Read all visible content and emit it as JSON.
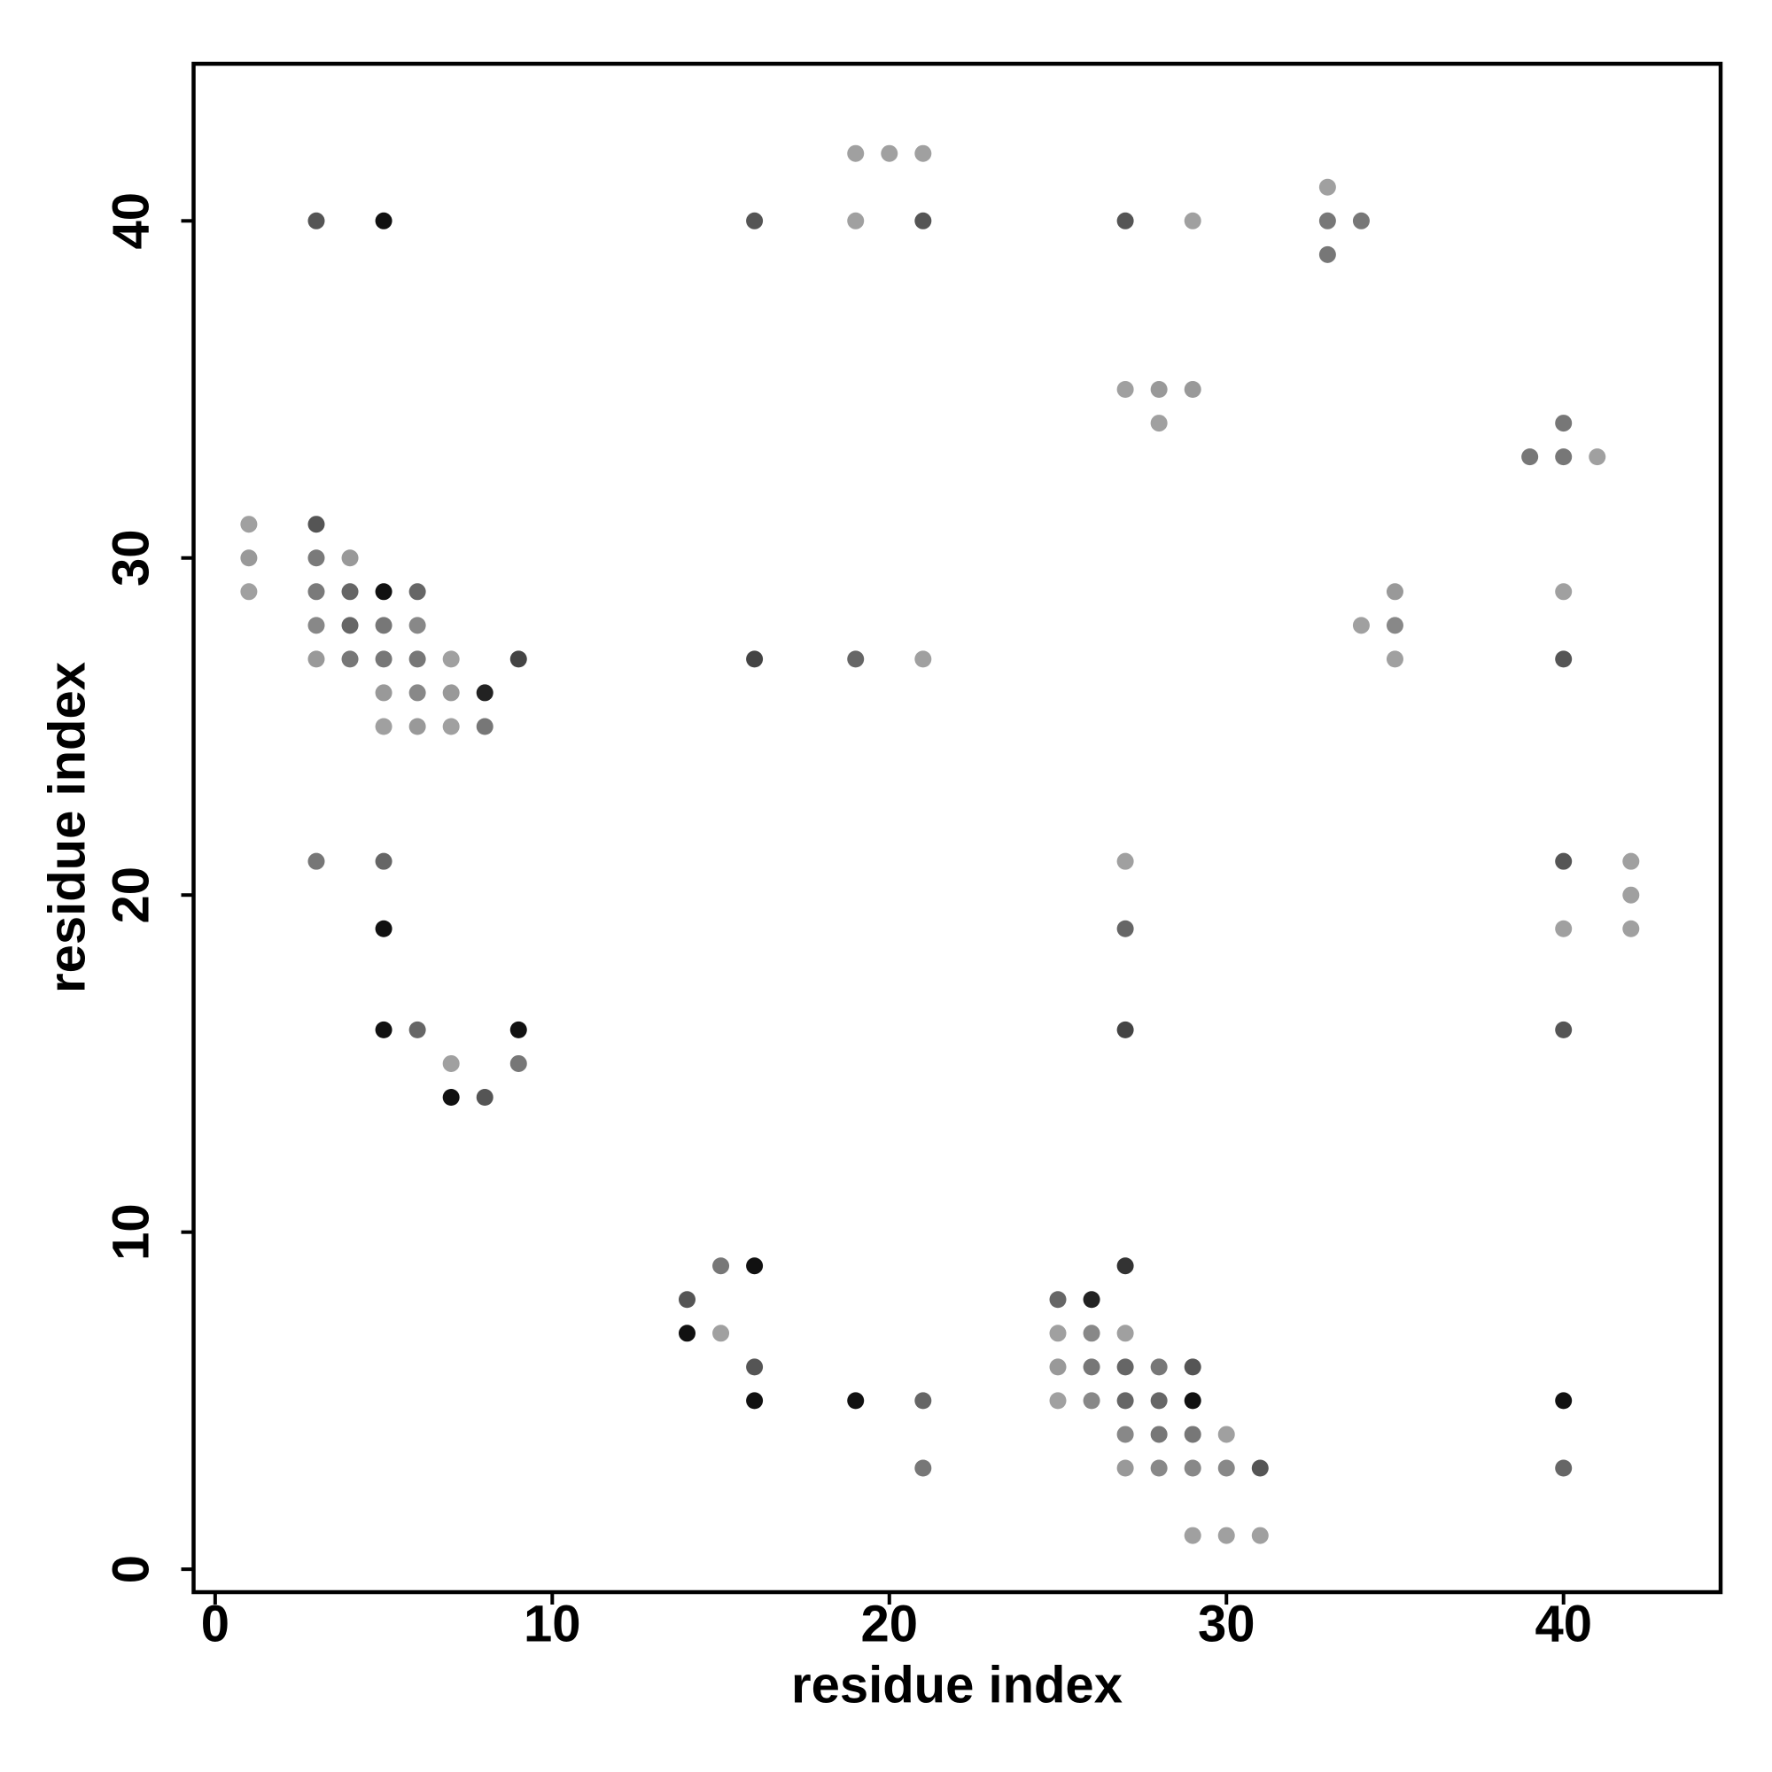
{
  "chart_data": {
    "type": "scatter",
    "xlabel": "residue index",
    "ylabel": "residue index",
    "x": [
      19,
      20,
      21,
      3,
      5,
      16,
      19,
      21,
      27,
      29,
      33,
      34,
      33,
      33,
      27,
      28,
      29,
      28,
      40,
      39,
      40,
      41,
      1,
      3,
      1,
      3,
      4,
      1,
      3,
      4,
      5,
      6,
      35,
      40,
      3,
      4,
      5,
      6,
      34,
      35,
      3,
      4,
      5,
      6,
      7,
      9,
      16,
      19,
      21,
      35,
      40,
      5,
      6,
      7,
      8,
      5,
      6,
      7,
      8,
      3,
      5,
      27,
      40,
      42,
      42,
      5,
      27,
      40,
      42,
      5,
      6,
      9,
      27,
      40,
      7,
      9,
      7,
      8,
      15,
      16,
      27,
      14,
      25,
      26,
      14,
      15,
      25,
      26,
      27,
      16,
      25,
      26,
      27,
      28,
      29,
      16,
      19,
      21,
      25,
      26,
      27,
      28,
      29,
      40,
      27,
      28,
      29,
      30,
      21,
      27,
      28,
      29,
      30,
      31,
      40,
      29,
      30,
      31
    ],
    "values": [
      42,
      42,
      42,
      40,
      40,
      40,
      40,
      40,
      40,
      40,
      40,
      40,
      41,
      39,
      35,
      35,
      35,
      34,
      34,
      33,
      33,
      33,
      31,
      31,
      30,
      30,
      30,
      29,
      29,
      29,
      29,
      29,
      29,
      29,
      28,
      28,
      28,
      28,
      28,
      28,
      27,
      27,
      27,
      27,
      27,
      27,
      27,
      27,
      27,
      27,
      27,
      26,
      26,
      26,
      26,
      25,
      25,
      25,
      25,
      21,
      21,
      21,
      21,
      21,
      20,
      19,
      19,
      19,
      19,
      16,
      16,
      16,
      16,
      16,
      15,
      15,
      14,
      14,
      9,
      9,
      9,
      8,
      8,
      8,
      7,
      7,
      7,
      7,
      7,
      6,
      6,
      6,
      6,
      6,
      6,
      5,
      5,
      5,
      5,
      5,
      5,
      5,
      5,
      5,
      4,
      4,
      4,
      4,
      3,
      3,
      3,
      3,
      3,
      3,
      3,
      1,
      1,
      1
    ],
    "colors": [
      "#a0a0a0",
      "#a0a0a0",
      "#a0a0a0",
      "#555555",
      "#111111",
      "#555555",
      "#a0a0a0",
      "#555555",
      "#555555",
      "#a0a0a0",
      "#777777",
      "#777777",
      "#a0a0a0",
      "#777777",
      "#a0a0a0",
      "#999999",
      "#999999",
      "#a0a0a0",
      "#777777",
      "#777777",
      "#777777",
      "#a0a0a0",
      "#a0a0a0",
      "#555555",
      "#999999",
      "#7a7a7a",
      "#999999",
      "#a0a0a0",
      "#7a7a7a",
      "#666666",
      "#111111",
      "#666666",
      "#999999",
      "#a0a0a0",
      "#888888",
      "#666666",
      "#777777",
      "#888888",
      "#a0a0a0",
      "#888888",
      "#999999",
      "#777777",
      "#777777",
      "#777777",
      "#a0a0a0",
      "#444444",
      "#444444",
      "#666666",
      "#a0a0a0",
      "#a0a0a0",
      "#555555",
      "#999999",
      "#888888",
      "#999999",
      "#222222",
      "#a0a0a0",
      "#999999",
      "#a0a0a0",
      "#777777",
      "#777777",
      "#666666",
      "#a0a0a0",
      "#555555",
      "#a0a0a0",
      "#a0a0a0",
      "#111111",
      "#666666",
      "#a0a0a0",
      "#a0a0a0",
      "#111111",
      "#666666",
      "#111111",
      "#444444",
      "#555555",
      "#a0a0a0",
      "#777777",
      "#111111",
      "#555555",
      "#777777",
      "#111111",
      "#333333",
      "#555555",
      "#666666",
      "#222222",
      "#111111",
      "#a0a0a0",
      "#a0a0a0",
      "#888888",
      "#a0a0a0",
      "#555555",
      "#999999",
      "#777777",
      "#666666",
      "#777777",
      "#555555",
      "#111111",
      "#111111",
      "#666666",
      "#a0a0a0",
      "#888888",
      "#666666",
      "#666666",
      "#111111",
      "#111111",
      "#888888",
      "#777777",
      "#777777",
      "#a0a0a0",
      "#777777",
      "#999999",
      "#888888",
      "#888888",
      "#888888",
      "#555555",
      "#666666",
      "#a0a0a0",
      "#a0a0a0",
      "#a0a0a0"
    ],
    "xlim": [
      -0.64,
      44.66
    ],
    "ylim": [
      -0.68,
      44.66
    ],
    "xticks": [
      0,
      10,
      20,
      30,
      40
    ],
    "yticks": [
      0,
      10,
      20,
      30,
      40
    ]
  }
}
